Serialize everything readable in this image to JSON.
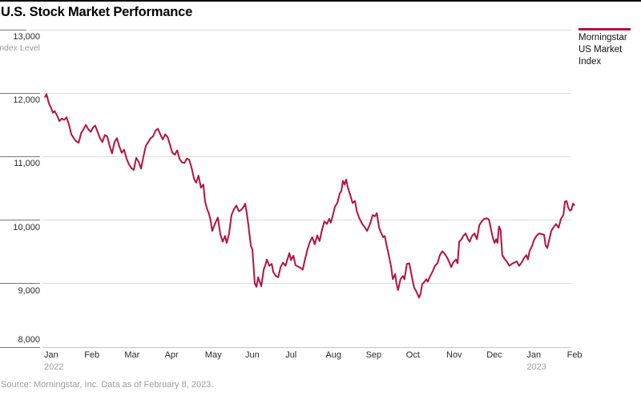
{
  "page": {
    "title": "U.S. Stock Market Performance",
    "source_note": "Source: Morningstar, Inc. Data as of February 8, 2023."
  },
  "legend": {
    "lines": [
      "Morningstar",
      "US Market",
      "Index"
    ]
  },
  "y_axis": {
    "unit_label": "Index Level",
    "tick_values": [
      13000,
      12000,
      11000,
      10000,
      9000,
      8000
    ],
    "tick_labels": [
      "13,000",
      "12,000",
      "11,000",
      "10,000",
      "9,000",
      "8,000"
    ]
  },
  "x_axis": {
    "months": [
      "Jan",
      "Feb",
      "Mar",
      "Apr",
      "May",
      "Jun",
      "Jul",
      "Aug",
      "Sep",
      "Oct",
      "Nov",
      "Dec",
      "Jan",
      "Feb"
    ],
    "years": [
      {
        "label": "2022",
        "month_index": 0
      },
      {
        "label": "2023",
        "month_index": 12
      }
    ]
  },
  "chart_data": {
    "type": "line",
    "title": "U.S. Stock Market Performance",
    "xlabel": "",
    "ylabel": "Index Level",
    "ylim": [
      8000,
      13000
    ],
    "xlim_months": [
      0,
      13.27
    ],
    "grid": "horizontal-only",
    "legend_position": "top-right",
    "x_unit": "months since Jan 1, 2022",
    "series": [
      {
        "name": "Morningstar US Market Index",
        "color": "#b5123f",
        "points": [
          [
            0.02,
            11930
          ],
          [
            0.06,
            11985
          ],
          [
            0.12,
            11840
          ],
          [
            0.18,
            11760
          ],
          [
            0.22,
            11690
          ],
          [
            0.26,
            11720
          ],
          [
            0.32,
            11650
          ],
          [
            0.38,
            11560
          ],
          [
            0.44,
            11600
          ],
          [
            0.5,
            11580
          ],
          [
            0.56,
            11620
          ],
          [
            0.62,
            11500
          ],
          [
            0.68,
            11350
          ],
          [
            0.74,
            11290
          ],
          [
            0.8,
            11240
          ],
          [
            0.86,
            11220
          ],
          [
            0.92,
            11370
          ],
          [
            0.98,
            11430
          ],
          [
            1.04,
            11500
          ],
          [
            1.1,
            11430
          ],
          [
            1.16,
            11390
          ],
          [
            1.22,
            11460
          ],
          [
            1.27,
            11490
          ],
          [
            1.33,
            11390
          ],
          [
            1.39,
            11290
          ],
          [
            1.45,
            11230
          ],
          [
            1.51,
            11340
          ],
          [
            1.57,
            11320
          ],
          [
            1.63,
            11170
          ],
          [
            1.69,
            11050
          ],
          [
            1.75,
            11230
          ],
          [
            1.81,
            11290
          ],
          [
            1.87,
            11160
          ],
          [
            1.93,
            11060
          ],
          [
            1.99,
            11110
          ],
          [
            2.05,
            10970
          ],
          [
            2.11,
            10880
          ],
          [
            2.17,
            10820
          ],
          [
            2.23,
            10790
          ],
          [
            2.29,
            10980
          ],
          [
            2.35,
            10920
          ],
          [
            2.41,
            10810
          ],
          [
            2.47,
            11000
          ],
          [
            2.53,
            11170
          ],
          [
            2.59,
            11230
          ],
          [
            2.65,
            11290
          ],
          [
            2.71,
            11320
          ],
          [
            2.77,
            11410
          ],
          [
            2.83,
            11440
          ],
          [
            2.89,
            11350
          ],
          [
            2.95,
            11270
          ],
          [
            3.01,
            11350
          ],
          [
            3.07,
            11310
          ],
          [
            3.13,
            11190
          ],
          [
            3.19,
            11060
          ],
          [
            3.25,
            11030
          ],
          [
            3.31,
            11100
          ],
          [
            3.37,
            10960
          ],
          [
            3.43,
            10910
          ],
          [
            3.49,
            10900
          ],
          [
            3.55,
            10970
          ],
          [
            3.61,
            10950
          ],
          [
            3.67,
            10820
          ],
          [
            3.73,
            10650
          ],
          [
            3.78,
            10590
          ],
          [
            3.84,
            10700
          ],
          [
            3.9,
            10510
          ],
          [
            3.96,
            10560
          ],
          [
            4.0,
            10300
          ],
          [
            4.05,
            10180
          ],
          [
            4.1,
            10100
          ],
          [
            4.14,
            10000
          ],
          [
            4.18,
            9830
          ],
          [
            4.26,
            9960
          ],
          [
            4.32,
            10040
          ],
          [
            4.38,
            9780
          ],
          [
            4.44,
            9660
          ],
          [
            4.5,
            9750
          ],
          [
            4.54,
            9640
          ],
          [
            4.6,
            9790
          ],
          [
            4.66,
            10080
          ],
          [
            4.72,
            10170
          ],
          [
            4.78,
            10230
          ],
          [
            4.84,
            10140
          ],
          [
            4.9,
            10160
          ],
          [
            4.96,
            10210
          ],
          [
            5.0,
            10260
          ],
          [
            5.04,
            10110
          ],
          [
            5.08,
            9920
          ],
          [
            5.14,
            9600
          ],
          [
            5.18,
            9540
          ],
          [
            5.24,
            9000
          ],
          [
            5.28,
            8950
          ],
          [
            5.32,
            9100
          ],
          [
            5.36,
            9030
          ],
          [
            5.4,
            8960
          ],
          [
            5.46,
            9220
          ],
          [
            5.5,
            9290
          ],
          [
            5.54,
            9380
          ],
          [
            5.6,
            9280
          ],
          [
            5.66,
            9310
          ],
          [
            5.7,
            9180
          ],
          [
            5.76,
            9120
          ],
          [
            5.82,
            9100
          ],
          [
            5.88,
            9260
          ],
          [
            5.94,
            9330
          ],
          [
            6.0,
            9280
          ],
          [
            6.06,
            9400
          ],
          [
            6.1,
            9480
          ],
          [
            6.14,
            9370
          ],
          [
            6.2,
            9440
          ],
          [
            6.25,
            9290
          ],
          [
            6.31,
            9270
          ],
          [
            6.37,
            9250
          ],
          [
            6.43,
            9220
          ],
          [
            6.49,
            9390
          ],
          [
            6.55,
            9540
          ],
          [
            6.61,
            9660
          ],
          [
            6.67,
            9730
          ],
          [
            6.73,
            9620
          ],
          [
            6.79,
            9760
          ],
          [
            6.85,
            9670
          ],
          [
            6.91,
            9850
          ],
          [
            6.97,
            9980
          ],
          [
            7.03,
            9940
          ],
          [
            7.09,
            10020
          ],
          [
            7.13,
            9960
          ],
          [
            7.19,
            10100
          ],
          [
            7.23,
            10210
          ],
          [
            7.29,
            10270
          ],
          [
            7.35,
            10420
          ],
          [
            7.39,
            10460
          ],
          [
            7.43,
            10620
          ],
          [
            7.47,
            10560
          ],
          [
            7.51,
            10640
          ],
          [
            7.55,
            10520
          ],
          [
            7.61,
            10400
          ],
          [
            7.67,
            10270
          ],
          [
            7.73,
            10300
          ],
          [
            7.77,
            10150
          ],
          [
            7.83,
            10040
          ],
          [
            7.91,
            9940
          ],
          [
            7.97,
            9890
          ],
          [
            8.03,
            9830
          ],
          [
            8.11,
            9950
          ],
          [
            8.17,
            10080
          ],
          [
            8.23,
            10060
          ],
          [
            8.27,
            10110
          ],
          [
            8.33,
            9880
          ],
          [
            8.37,
            9810
          ],
          [
            8.43,
            9730
          ],
          [
            8.47,
            9750
          ],
          [
            8.51,
            9620
          ],
          [
            8.57,
            9450
          ],
          [
            8.63,
            9260
          ],
          [
            8.67,
            9070
          ],
          [
            8.73,
            9150
          ],
          [
            8.76,
            9000
          ],
          [
            8.8,
            8900
          ],
          [
            8.86,
            9070
          ],
          [
            8.92,
            9120
          ],
          [
            8.96,
            9070
          ],
          [
            9.02,
            9310
          ],
          [
            9.08,
            9320
          ],
          [
            9.12,
            9190
          ],
          [
            9.16,
            9060
          ],
          [
            9.2,
            8940
          ],
          [
            9.26,
            8870
          ],
          [
            9.32,
            8780
          ],
          [
            9.36,
            8840
          ],
          [
            9.4,
            8990
          ],
          [
            9.46,
            9030
          ],
          [
            9.5,
            9070
          ],
          [
            9.54,
            9030
          ],
          [
            9.6,
            9120
          ],
          [
            9.66,
            9190
          ],
          [
            9.72,
            9280
          ],
          [
            9.78,
            9320
          ],
          [
            9.84,
            9450
          ],
          [
            9.9,
            9510
          ],
          [
            9.96,
            9470
          ],
          [
            10.02,
            9410
          ],
          [
            10.08,
            9330
          ],
          [
            10.12,
            9260
          ],
          [
            10.18,
            9340
          ],
          [
            10.24,
            9380
          ],
          [
            10.28,
            9320
          ],
          [
            10.32,
            9660
          ],
          [
            10.38,
            9700
          ],
          [
            10.42,
            9750
          ],
          [
            10.48,
            9790
          ],
          [
            10.54,
            9700
          ],
          [
            10.58,
            9660
          ],
          [
            10.64,
            9750
          ],
          [
            10.7,
            9790
          ],
          [
            10.76,
            9700
          ],
          [
            10.82,
            9920
          ],
          [
            10.88,
            9980
          ],
          [
            10.94,
            10020
          ],
          [
            11.0,
            10030
          ],
          [
            11.06,
            10010
          ],
          [
            11.12,
            9830
          ],
          [
            11.16,
            9720
          ],
          [
            11.2,
            9640
          ],
          [
            11.24,
            9700
          ],
          [
            11.27,
            9640
          ],
          [
            11.31,
            9900
          ],
          [
            11.35,
            9840
          ],
          [
            11.39,
            9450
          ],
          [
            11.45,
            9390
          ],
          [
            11.51,
            9340
          ],
          [
            11.57,
            9280
          ],
          [
            11.63,
            9310
          ],
          [
            11.69,
            9330
          ],
          [
            11.75,
            9350
          ],
          [
            11.81,
            9280
          ],
          [
            11.87,
            9330
          ],
          [
            11.93,
            9400
          ],
          [
            11.99,
            9450
          ],
          [
            12.03,
            9380
          ],
          [
            12.07,
            9510
          ],
          [
            12.13,
            9590
          ],
          [
            12.19,
            9700
          ],
          [
            12.25,
            9760
          ],
          [
            12.31,
            9790
          ],
          [
            12.37,
            9780
          ],
          [
            12.43,
            9770
          ],
          [
            12.47,
            9600
          ],
          [
            12.51,
            9560
          ],
          [
            12.57,
            9720
          ],
          [
            12.61,
            9830
          ],
          [
            12.67,
            9890
          ],
          [
            12.73,
            9940
          ],
          [
            12.79,
            9880
          ],
          [
            12.85,
            10020
          ],
          [
            12.91,
            10080
          ],
          [
            12.95,
            10290
          ],
          [
            12.99,
            10300
          ],
          [
            13.03,
            10200
          ],
          [
            13.07,
            10150
          ],
          [
            13.11,
            10160
          ],
          [
            13.15,
            10260
          ],
          [
            13.19,
            10230
          ]
        ]
      }
    ]
  },
  "colors": {
    "series_red": "#b5123f",
    "gridline": "#dcdcdc",
    "grid_stub": "#777777",
    "axis_text": "#2a2a2a",
    "muted_text": "#9e9e9e",
    "title_text": "#000000"
  }
}
